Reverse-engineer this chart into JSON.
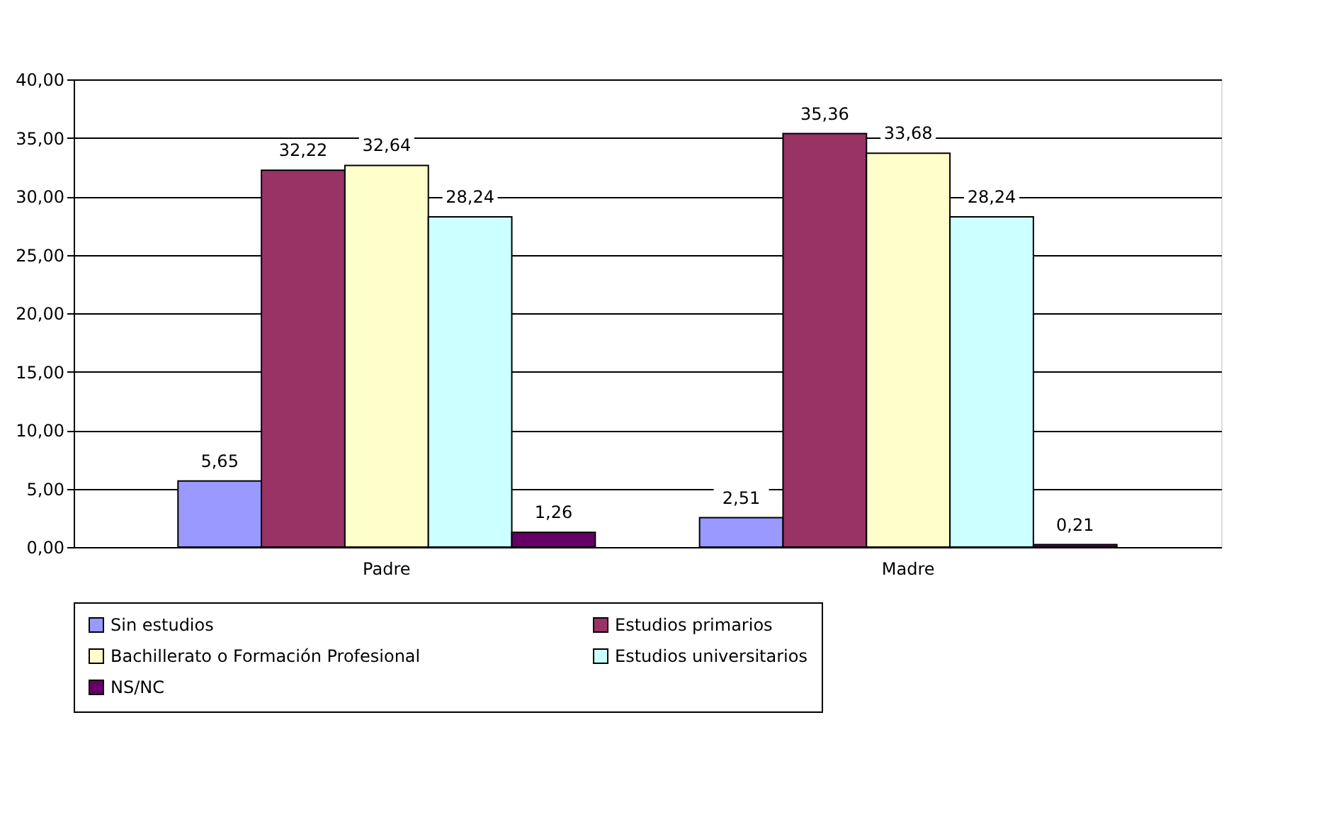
{
  "chart_data": {
    "type": "bar",
    "categories": [
      "Padre",
      "Madre"
    ],
    "series": [
      {
        "name": "Sin estudios",
        "color": "#9999ff",
        "values": [
          5.65,
          2.51
        ],
        "value_labels": [
          "5,65",
          "2,51"
        ]
      },
      {
        "name": "Estudios primarios",
        "color": "#993366",
        "values": [
          32.22,
          35.36
        ],
        "value_labels": [
          "32,22",
          "35,36"
        ]
      },
      {
        "name": "Bachillerato o Formación Profesional",
        "color": "#ffffcc",
        "values": [
          32.64,
          33.68
        ],
        "value_labels": [
          "32,64",
          "33,68"
        ]
      },
      {
        "name": "Estudios universitarios",
        "color": "#ccffff",
        "values": [
          28.24,
          28.24
        ],
        "value_labels": [
          "28,24",
          "28,24"
        ]
      },
      {
        "name": "NS/NC",
        "color": "#660066",
        "values": [
          1.26,
          0.21
        ],
        "value_labels": [
          "1,26",
          "0,21"
        ]
      }
    ],
    "ylim": [
      0,
      40
    ],
    "yticks": [
      {
        "value": 0,
        "label": "0,00"
      },
      {
        "value": 5,
        "label": "5,00"
      },
      {
        "value": 10,
        "label": "10,00"
      },
      {
        "value": 15,
        "label": "15,00"
      },
      {
        "value": 20,
        "label": "20,00"
      },
      {
        "value": 25,
        "label": "25,00"
      },
      {
        "value": 30,
        "label": "30,00"
      },
      {
        "value": 35,
        "label": "35,00"
      },
      {
        "value": 40,
        "label": "40,00"
      }
    ],
    "grid": "y",
    "legend": "bottom"
  }
}
